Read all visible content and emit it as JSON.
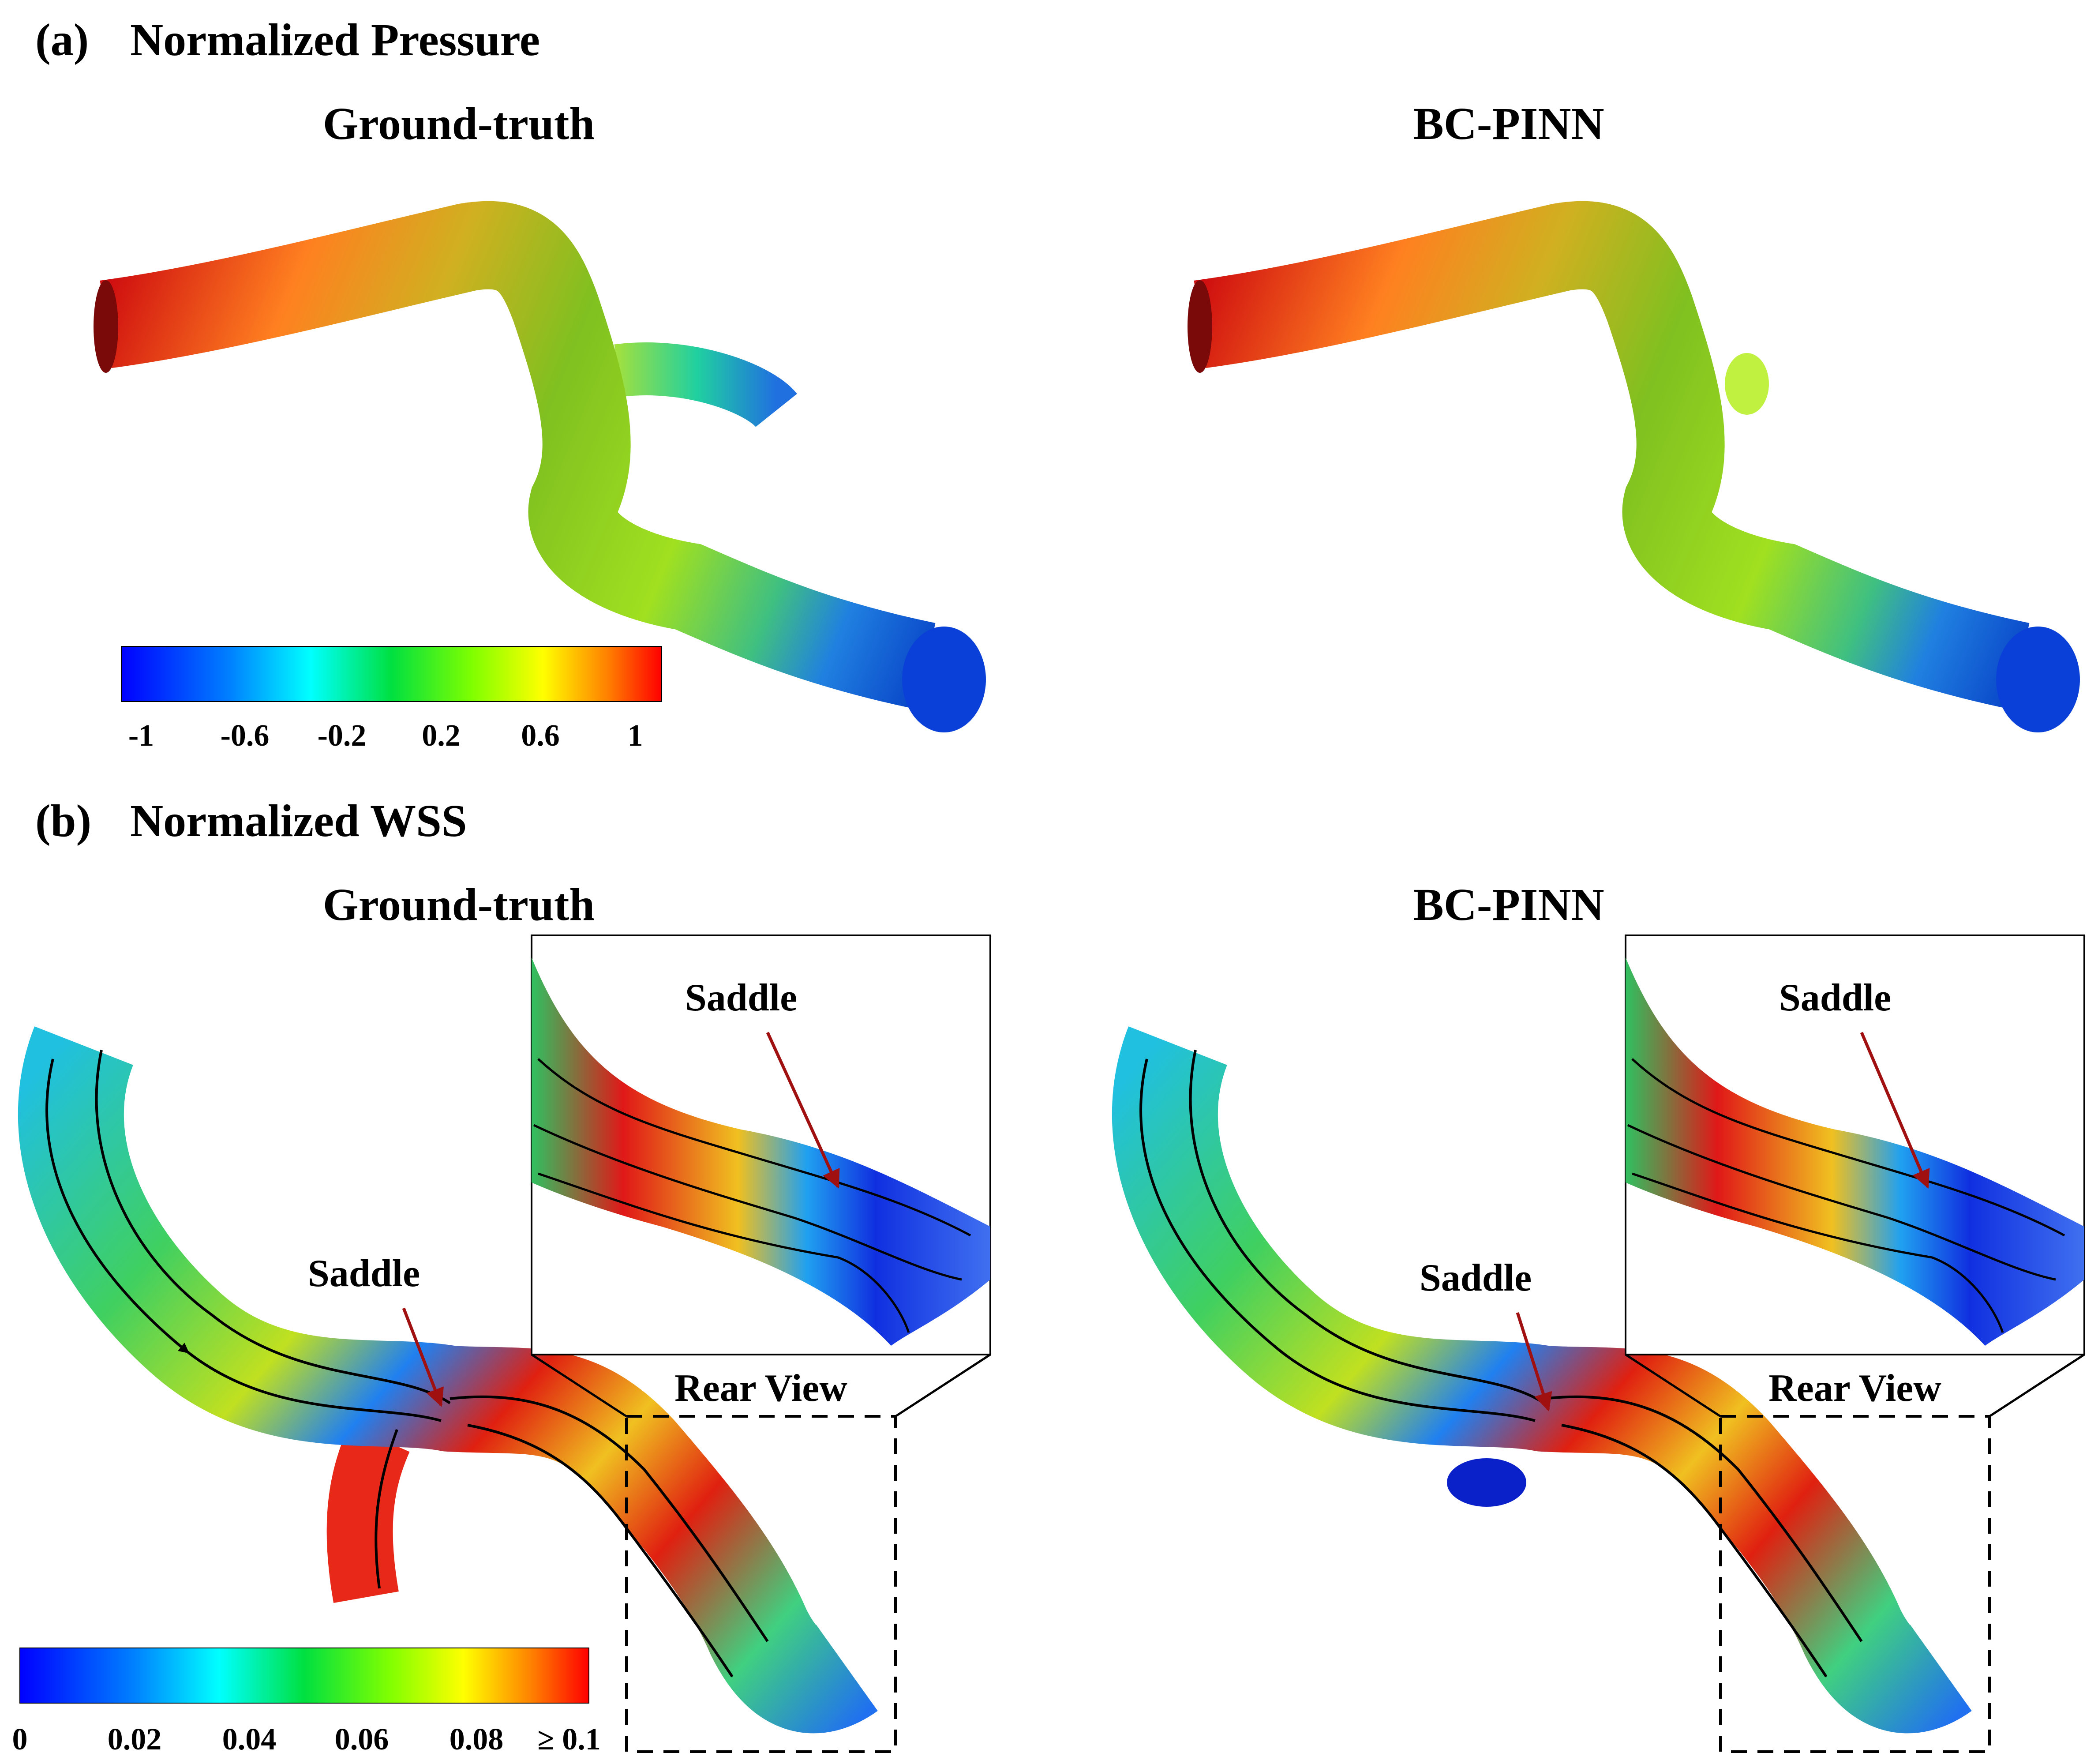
{
  "panel_a": {
    "label": "(a)",
    "title": "Normalized Pressure",
    "left_title": "Ground-truth",
    "right_title": "BC-PINN",
    "colorbar_ticks": [
      "-1",
      "-0.6",
      "-0.2",
      "0.2",
      "0.6",
      "1"
    ],
    "colorbar_range": [
      -1,
      1
    ]
  },
  "panel_b": {
    "label": "(b)",
    "title": "Normalized WSS",
    "left_title": "Ground-truth",
    "right_title": "BC-PINN",
    "saddle_label": "Saddle",
    "rear_view_label": "Rear View",
    "colorbar_ticks": [
      "0",
      "0.02",
      "0.04",
      "0.06",
      "0.08",
      "≥ 0.1"
    ],
    "colorbar_range": [
      0,
      0.1
    ]
  },
  "colors": {
    "colormap": [
      "#0000ff",
      "#0066ff",
      "#00ffff",
      "#00ff66",
      "#33cc00",
      "#ccff00",
      "#ffcc00",
      "#ff6600",
      "#ff0000"
    ],
    "arrow": "#a01010",
    "streamline": "#000000"
  }
}
